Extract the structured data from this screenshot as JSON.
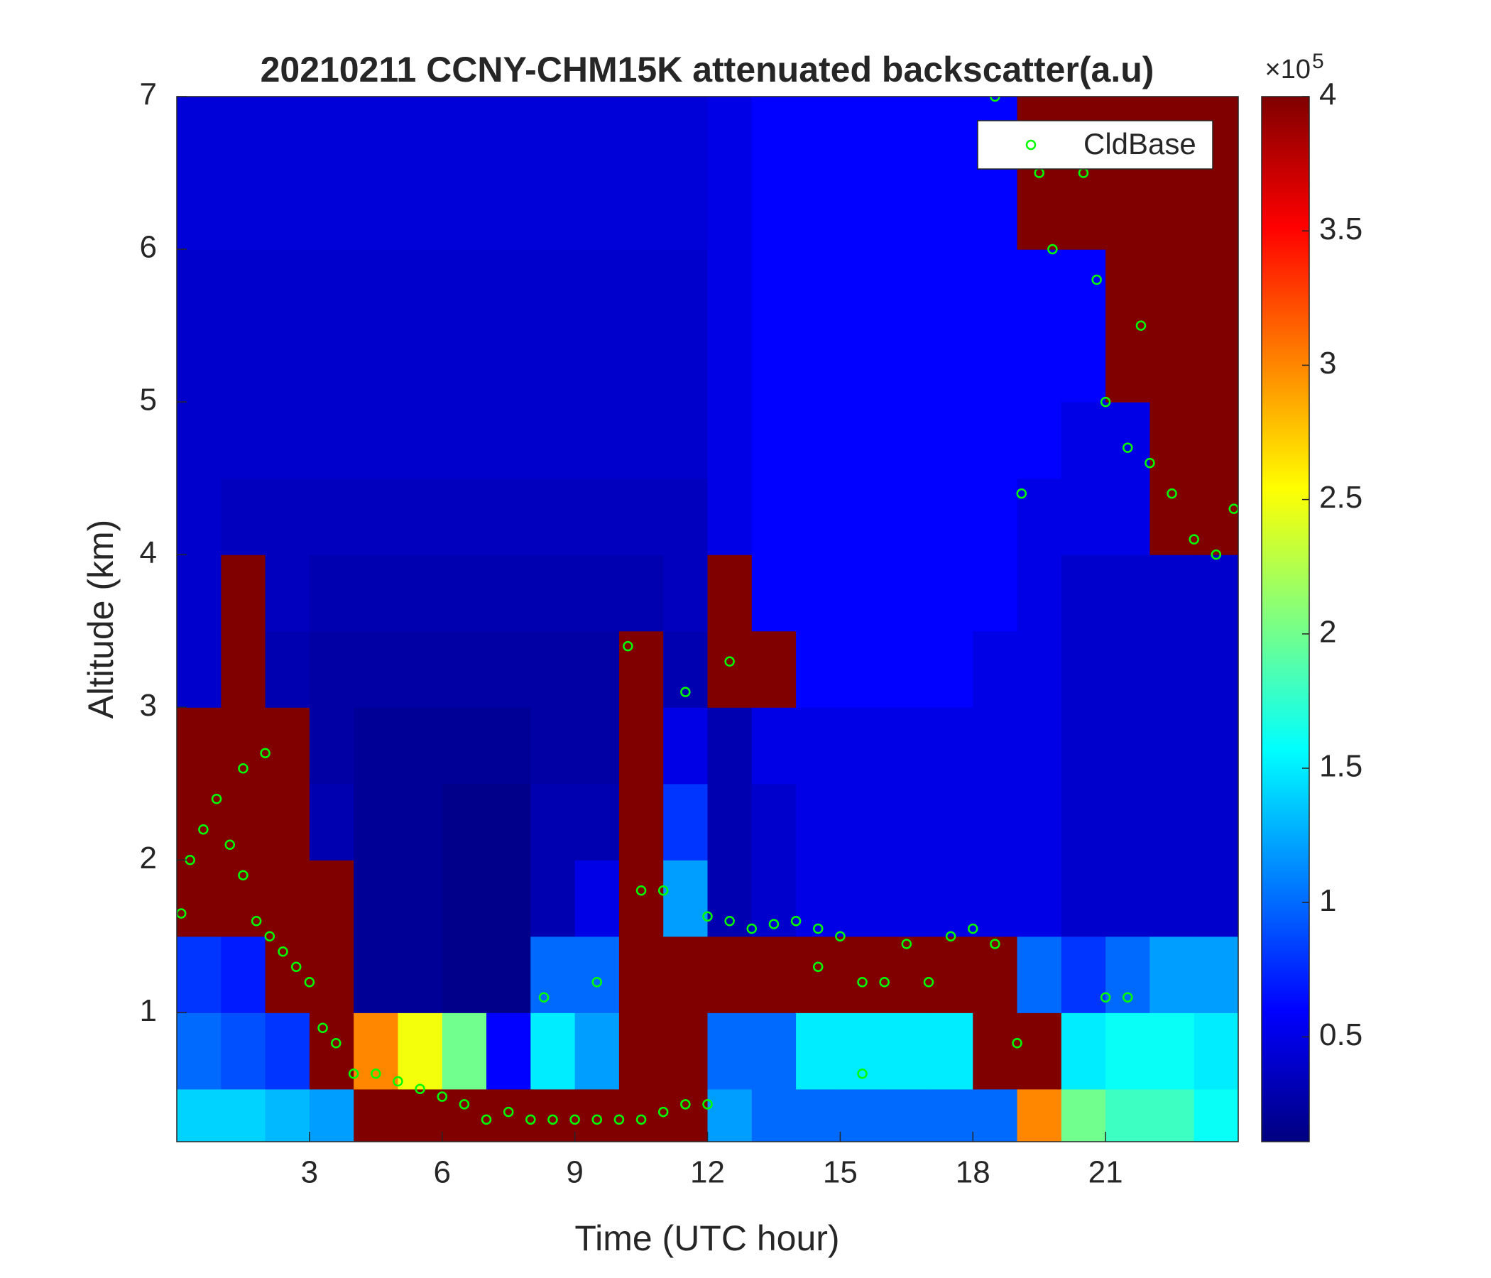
{
  "chart_data": {
    "type": "heatmap",
    "title": "20210211 CCNY-CHM15K attenuated backscatter(a.u)",
    "xlabel": "Time (UTC hour)",
    "ylabel": "Altitude (km)",
    "xlim": [
      0,
      24
    ],
    "ylim": [
      0.155,
      7
    ],
    "xticks": [
      3,
      6,
      9,
      12,
      15,
      18,
      21
    ],
    "yticks": [
      1,
      2,
      3,
      4,
      5,
      6,
      7
    ],
    "colormap": "jet",
    "clim": [
      0.11,
      4
    ],
    "cticks": [
      0.5,
      1,
      1.5,
      2,
      2.5,
      3,
      3.5,
      4
    ],
    "cmultiplier": "×10",
    "cexponent": "5",
    "legend": "top-right",
    "x": [
      0.5,
      1.5,
      2.5,
      3.5,
      4.5,
      5.5,
      6.5,
      7.5,
      8.5,
      9.5,
      10.5,
      11.5,
      12.5,
      13.5,
      14.5,
      15.5,
      16.5,
      17.5,
      18.5,
      19.5,
      20.5,
      21.5,
      22.5,
      23.5
    ],
    "y": [
      0.25,
      0.75,
      1.25,
      1.75,
      2.25,
      2.75,
      3.25,
      3.75,
      4.25,
      4.75,
      5.25,
      5.75,
      6.25,
      6.75
    ],
    "z": [
      [
        1.4,
        1.0,
        0.8,
        4,
        4,
        4,
        0.4,
        0.4,
        0.4,
        0.4,
        0.4,
        0.4,
        0.45,
        0.45
      ],
      [
        1.4,
        0.9,
        0.7,
        4,
        4,
        4,
        4,
        4,
        0.35,
        0.4,
        0.4,
        0.4,
        0.45,
        0.45
      ],
      [
        1.3,
        0.8,
        4,
        4,
        4,
        4,
        0.3,
        0.35,
        0.35,
        0.4,
        0.4,
        0.4,
        0.45,
        0.45
      ],
      [
        1.2,
        4,
        4,
        4,
        0.3,
        0.25,
        0.25,
        0.3,
        0.35,
        0.4,
        0.4,
        0.4,
        0.45,
        0.45
      ],
      [
        4,
        3,
        0.2,
        0.2,
        0.2,
        0.2,
        0.25,
        0.3,
        0.35,
        0.4,
        0.4,
        0.4,
        0.45,
        0.45
      ],
      [
        4,
        2.5,
        0.2,
        0.2,
        0.2,
        0.2,
        0.25,
        0.3,
        0.35,
        0.4,
        0.4,
        0.4,
        0.45,
        0.45
      ],
      [
        4,
        2,
        0.15,
        0.15,
        0.15,
        0.2,
        0.25,
        0.3,
        0.35,
        0.4,
        0.4,
        0.4,
        0.45,
        0.45
      ],
      [
        4,
        0.6,
        0.15,
        0.15,
        0.15,
        0.2,
        0.25,
        0.3,
        0.35,
        0.4,
        0.4,
        0.4,
        0.45,
        0.45
      ],
      [
        4,
        1.5,
        1.0,
        0.3,
        0.3,
        0.25,
        0.25,
        0.3,
        0.35,
        0.4,
        0.4,
        0.4,
        0.45,
        0.45
      ],
      [
        4,
        1.2,
        1.0,
        0.5,
        0.3,
        0.25,
        0.25,
        0.3,
        0.35,
        0.4,
        0.4,
        0.4,
        0.45,
        0.45
      ],
      [
        4,
        4,
        4,
        4,
        4,
        4,
        4,
        0.3,
        0.35,
        0.4,
        0.4,
        0.4,
        0.45,
        0.45
      ],
      [
        4,
        4,
        4,
        1.2,
        0.8,
        0.5,
        0.3,
        0.35,
        0.35,
        0.4,
        0.4,
        0.4,
        0.45,
        0.45
      ],
      [
        1.2,
        1.0,
        4,
        0.3,
        0.3,
        0.3,
        4,
        4,
        0.5,
        0.5,
        0.5,
        0.5,
        0.5,
        0.5
      ],
      [
        1.0,
        1.0,
        4,
        0.4,
        0.4,
        0.5,
        4,
        0.6,
        0.6,
        0.6,
        0.6,
        0.6,
        0.6,
        0.6
      ],
      [
        1.0,
        1.5,
        4,
        0.5,
        0.5,
        0.5,
        0.6,
        0.6,
        0.6,
        0.6,
        0.6,
        0.6,
        0.6,
        0.6
      ],
      [
        1.0,
        1.5,
        4,
        0.5,
        0.5,
        0.5,
        0.6,
        0.6,
        0.6,
        0.6,
        0.6,
        0.6,
        0.6,
        0.6
      ],
      [
        1.0,
        1.5,
        4,
        0.5,
        0.5,
        0.5,
        0.6,
        0.6,
        0.6,
        0.6,
        0.6,
        0.6,
        0.6,
        0.6
      ],
      [
        1.0,
        1.5,
        4,
        0.5,
        0.5,
        0.5,
        0.6,
        0.6,
        0.6,
        0.6,
        0.6,
        0.6,
        0.6,
        0.6
      ],
      [
        1.0,
        4,
        4,
        0.5,
        0.5,
        0.5,
        0.5,
        0.6,
        0.6,
        0.6,
        0.6,
        0.6,
        0.6,
        0.6
      ],
      [
        3,
        4,
        1.0,
        0.5,
        0.5,
        0.5,
        0.5,
        0.5,
        0.5,
        0.6,
        0.6,
        0.6,
        4,
        4
      ],
      [
        2,
        1.5,
        0.8,
        0.4,
        0.4,
        0.4,
        0.4,
        0.4,
        0.5,
        0.5,
        0.6,
        0.6,
        4,
        4
      ],
      [
        1.8,
        1.6,
        1.0,
        0.4,
        0.4,
        0.4,
        0.4,
        0.4,
        0.5,
        0.5,
        4,
        4,
        4,
        4
      ],
      [
        1.8,
        1.6,
        1.2,
        0.4,
        0.4,
        0.4,
        0.4,
        0.4,
        4,
        4,
        4,
        4,
        4,
        4
      ],
      [
        1.6,
        1.5,
        1.2,
        0.4,
        0.4,
        0.4,
        0.4,
        0.4,
        4,
        4,
        4,
        4,
        4,
        4
      ]
    ],
    "series": [
      {
        "name": "CldBase",
        "color": "#00ff00",
        "x": [
          0.1,
          0.3,
          0.6,
          0.9,
          1.2,
          1.5,
          1.8,
          2.1,
          2.4,
          2.7,
          3.0,
          3.3,
          3.6,
          4.0,
          4.5,
          5.0,
          5.5,
          6.0,
          6.5,
          7.0,
          7.5,
          8.0,
          8.5,
          9.0,
          9.5,
          10.0,
          10.5,
          11.0,
          11.5,
          12.0,
          1.5,
          2.0,
          8.3,
          9.5,
          10.2,
          10.5,
          11.0,
          11.5,
          12.0,
          12.5,
          12.5,
          13.0,
          13.5,
          14.0,
          14.5,
          15.0,
          14.5,
          15.5,
          16.0,
          17.0,
          16.5,
          17.5,
          18.0,
          18.5,
          19.0,
          19.5,
          19.8,
          20.5,
          20.8,
          21.0,
          21.5,
          21.8,
          22.0,
          22.5,
          23.0,
          23.5,
          23.9,
          21.0,
          21.5,
          19.1,
          15.5,
          18.5
        ],
        "y": [
          1.65,
          2.0,
          2.2,
          2.4,
          2.1,
          1.9,
          1.6,
          1.5,
          1.4,
          1.3,
          1.2,
          0.9,
          0.8,
          0.6,
          0.6,
          0.55,
          0.5,
          0.45,
          0.4,
          0.3,
          0.35,
          0.3,
          0.3,
          0.3,
          0.3,
          0.3,
          0.3,
          0.35,
          0.4,
          0.4,
          2.6,
          2.7,
          1.1,
          1.2,
          3.4,
          1.8,
          1.8,
          3.1,
          1.63,
          1.6,
          3.3,
          1.55,
          1.58,
          1.6,
          1.55,
          1.5,
          1.3,
          1.2,
          1.2,
          1.2,
          1.45,
          1.5,
          1.55,
          1.45,
          0.8,
          6.5,
          6.0,
          6.5,
          5.8,
          5.0,
          4.7,
          5.5,
          4.6,
          4.4,
          4.1,
          4.0,
          4.3,
          1.1,
          1.1,
          4.4,
          0.6,
          7.0
        ]
      }
    ]
  }
}
